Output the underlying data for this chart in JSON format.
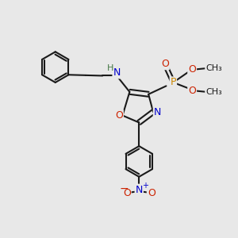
{
  "bg_color": "#e8e8e8",
  "bond_color": "#1a1a1a",
  "bond_width": 1.5,
  "colors": {
    "C": "#1a1a1a",
    "N": "#0000cc",
    "O": "#cc2200",
    "P": "#cc8800",
    "H": "#447744"
  },
  "font_size": 9,
  "xlim": [
    0,
    10
  ],
  "ylim": [
    0,
    10
  ]
}
